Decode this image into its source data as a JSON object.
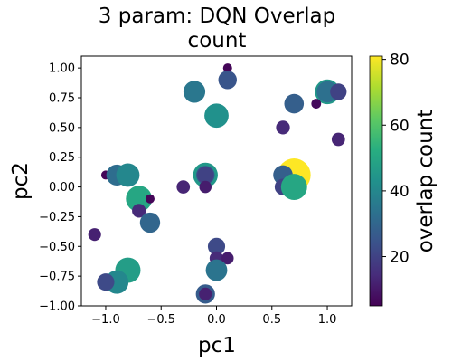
{
  "chart_data": {
    "type": "scatter",
    "title": "3 param: DQN Overlap\ncount",
    "xlabel": "pc1",
    "ylabel": "pc2",
    "xlim": [
      -1.22,
      1.22
    ],
    "ylim": [
      -1.0,
      1.1
    ],
    "xticks": [
      "−1.0",
      "−0.5",
      "0.0",
      "0.5",
      "1.0"
    ],
    "xtick_values": [
      -1.0,
      -0.5,
      0.0,
      0.5,
      1.0
    ],
    "yticks": [
      "−1.00",
      "−0.75",
      "−0.50",
      "−0.25",
      "0.00",
      "0.25",
      "0.50",
      "0.75",
      "1.00"
    ],
    "ytick_values": [
      -1.0,
      -0.75,
      -0.5,
      -0.25,
      0.0,
      0.25,
      0.5,
      0.75,
      1.0
    ],
    "colorbar": {
      "label": "overlap count",
      "colormap": "viridis",
      "range": [
        5,
        81
      ],
      "ticks": [
        "20",
        "40",
        "60",
        "80"
      ],
      "tick_values": [
        20,
        40,
        60,
        80
      ]
    },
    "grid": false,
    "note_marker_size": "marker area scales with overlap count",
    "points": [
      {
        "x": 0.1,
        "y": 1.0,
        "c": 6
      },
      {
        "x": -0.2,
        "y": 0.8,
        "c": 35
      },
      {
        "x": 0.1,
        "y": 0.9,
        "c": 25
      },
      {
        "x": 1.0,
        "y": 0.8,
        "c": 45
      },
      {
        "x": 1.0,
        "y": 0.8,
        "c": 33
      },
      {
        "x": 1.1,
        "y": 0.8,
        "c": 20
      },
      {
        "x": 0.7,
        "y": 0.7,
        "c": 28
      },
      {
        "x": 0.9,
        "y": 0.7,
        "c": 7
      },
      {
        "x": 0.0,
        "y": 0.6,
        "c": 43
      },
      {
        "x": 0.6,
        "y": 0.5,
        "c": 14
      },
      {
        "x": 1.1,
        "y": 0.4,
        "c": 13
      },
      {
        "x": -1.0,
        "y": 0.1,
        "c": 6
      },
      {
        "x": -0.9,
        "y": 0.1,
        "c": 32
      },
      {
        "x": -0.8,
        "y": 0.1,
        "c": 40
      },
      {
        "x": -0.1,
        "y": 0.1,
        "c": 45
      },
      {
        "x": -0.1,
        "y": 0.1,
        "c": 25
      },
      {
        "x": -0.1,
        "y": 0.1,
        "c": 20
      },
      {
        "x": 0.7,
        "y": 0.1,
        "c": 81
      },
      {
        "x": 0.6,
        "y": 0.1,
        "c": 28
      },
      {
        "x": -0.3,
        "y": 0.0,
        "c": 13
      },
      {
        "x": -0.1,
        "y": 0.0,
        "c": 11
      },
      {
        "x": 0.6,
        "y": 0.0,
        "c": 20
      },
      {
        "x": 0.7,
        "y": 0.0,
        "c": 50
      },
      {
        "x": -0.7,
        "y": -0.1,
        "c": 50
      },
      {
        "x": -0.6,
        "y": -0.1,
        "c": 6
      },
      {
        "x": -0.7,
        "y": -0.2,
        "c": 14
      },
      {
        "x": -0.6,
        "y": -0.3,
        "c": 30
      },
      {
        "x": -1.1,
        "y": -0.4,
        "c": 12
      },
      {
        "x": 0.0,
        "y": -0.5,
        "c": 22
      },
      {
        "x": 0.0,
        "y": -0.6,
        "c": 14
      },
      {
        "x": 0.1,
        "y": -0.6,
        "c": 11
      },
      {
        "x": -0.8,
        "y": -0.7,
        "c": 47
      },
      {
        "x": 0.0,
        "y": -0.7,
        "c": 34
      },
      {
        "x": -0.9,
        "y": -0.8,
        "c": 40
      },
      {
        "x": -1.0,
        "y": -0.8,
        "c": 22
      },
      {
        "x": -0.1,
        "y": -0.9,
        "c": 27
      },
      {
        "x": -0.1,
        "y": -0.9,
        "c": 12
      }
    ]
  }
}
